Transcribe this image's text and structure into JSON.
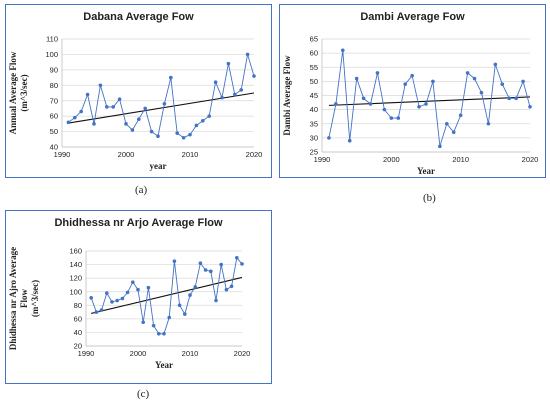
{
  "charts": {
    "a": {
      "caption": "(a)",
      "chart_data": {
        "type": "line",
        "title": "Dabana Average Fow",
        "xlabel": "year",
        "ylabel": [
          "Annual  Average Flow",
          "(m^3/sec)"
        ],
        "xlim": [
          1990,
          2020
        ],
        "ylim": [
          40,
          110
        ],
        "xticks": [
          1990,
          2000,
          2010,
          2020
        ],
        "yticks": [
          40,
          50,
          60,
          70,
          80,
          90,
          100,
          110
        ],
        "x": [
          1991,
          1992,
          1993,
          1994,
          1995,
          1996,
          1997,
          1998,
          1999,
          2000,
          2001,
          2002,
          2003,
          2004,
          2005,
          2006,
          2007,
          2008,
          2009,
          2010,
          2011,
          2012,
          2013,
          2014,
          2015,
          2016,
          2017,
          2018,
          2019,
          2020
        ],
        "values": [
          56,
          59,
          63,
          74,
          55,
          80,
          66,
          66,
          71,
          55,
          51,
          58,
          65,
          50,
          47,
          68,
          85,
          49,
          46,
          48,
          54,
          57,
          60,
          82,
          72,
          94,
          74,
          77,
          100,
          86
        ],
        "trend": [
          [
            1991,
            55.5
          ],
          [
            2020,
            75
          ]
        ],
        "grid": "horizontal",
        "color": "#4472c4"
      }
    },
    "b": {
      "caption": "(b)",
      "chart_data": {
        "type": "line",
        "title": "Dambi Average  Fow",
        "xlabel": "Year",
        "ylabel": [
          "Dambi Average Flow"
        ],
        "xlim": [
          1990,
          2020
        ],
        "ylim": [
          25,
          65
        ],
        "xticks": [
          1990,
          2000,
          2010,
          2020
        ],
        "yticks": [
          25,
          30,
          35,
          40,
          45,
          50,
          55,
          60,
          65
        ],
        "x": [
          1991,
          1992,
          1993,
          1994,
          1995,
          1996,
          1997,
          1998,
          1999,
          2000,
          2001,
          2002,
          2003,
          2004,
          2005,
          2006,
          2007,
          2008,
          2009,
          2010,
          2011,
          2012,
          2013,
          2014,
          2015,
          2016,
          2017,
          2018,
          2019,
          2020
        ],
        "values": [
          30,
          42,
          61,
          29,
          51,
          44,
          42,
          53,
          40,
          37,
          37,
          49,
          52,
          41,
          42,
          50,
          27,
          35,
          32,
          38,
          53,
          51,
          46,
          35,
          56,
          49,
          44,
          44,
          50,
          41
        ],
        "trend": [
          [
            1991,
            41.5
          ],
          [
            2020,
            44.5
          ]
        ],
        "grid": "horizontal",
        "color": "#4472c4"
      }
    },
    "c": {
      "caption": "(c)",
      "chart_data": {
        "type": "line",
        "title": "Dhidhessa nr Arjo Average  Flow",
        "xlabel": "Year",
        "ylabel": [
          "Dhidhessa nr Ajro Average",
          "Flow",
          "(m^3/sec)"
        ],
        "xlim": [
          1990,
          2020
        ],
        "ylim": [
          20,
          160
        ],
        "xticks": [
          1990,
          2000,
          2010,
          2020
        ],
        "yticks": [
          20,
          40,
          60,
          80,
          100,
          120,
          140,
          160
        ],
        "x": [
          1991,
          1992,
          1993,
          1994,
          1995,
          1996,
          1997,
          1998,
          1999,
          2000,
          2001,
          2002,
          2003,
          2004,
          2005,
          2006,
          2007,
          2008,
          2009,
          2010,
          2011,
          2012,
          2013,
          2014,
          2015,
          2016,
          2017,
          2018,
          2019,
          2020
        ],
        "values": [
          91,
          70,
          73,
          98,
          85,
          87,
          90,
          99,
          114,
          103,
          55,
          106,
          50,
          38,
          38,
          62,
          145,
          80,
          67,
          95,
          107,
          142,
          132,
          130,
          87,
          140,
          103,
          108,
          150,
          141
        ],
        "trend": [
          [
            1991,
            68
          ],
          [
            2020,
            121
          ]
        ],
        "grid": "horizontal",
        "color": "#4472c4"
      }
    }
  }
}
